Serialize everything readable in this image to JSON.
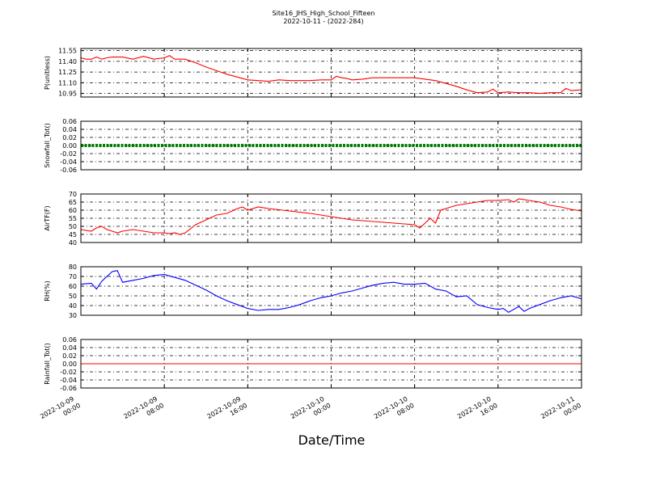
{
  "title": "Site16_JHS_High_School_Fifteen",
  "subtitle": "2022-10-11 - (2022-284)",
  "xlabel": "Date/Time",
  "x_ticks": [
    {
      "t": 0,
      "line1": "2022-10-09",
      "line2": "00:00"
    },
    {
      "t": 8,
      "line1": "2022-10-09",
      "line2": "08:00"
    },
    {
      "t": 16,
      "line1": "2022-10-09",
      "line2": "16:00"
    },
    {
      "t": 24,
      "line1": "2022-10-10",
      "line2": "00:00"
    },
    {
      "t": 32,
      "line1": "2022-10-10",
      "line2": "08:00"
    },
    {
      "t": 40,
      "line1": "2022-10-10",
      "line2": "16:00"
    },
    {
      "t": 48,
      "line1": "2022-10-11",
      "line2": "00:00"
    }
  ],
  "chart_data": [
    {
      "type": "line",
      "ylabel": "P(unitless)",
      "ylim": [
        10.9,
        11.58
      ],
      "yticks": [
        "11.55",
        "11.40",
        "11.25",
        "11.10",
        "10.95"
      ],
      "ytick_values": [
        11.55,
        11.4,
        11.25,
        11.1,
        10.95
      ],
      "color": "#ff0000",
      "x": [
        0,
        0.5,
        1,
        1.5,
        2,
        2.5,
        3,
        3.5,
        4,
        5,
        6,
        7,
        8,
        8.5,
        9,
        10,
        11,
        12,
        13,
        14,
        15,
        16,
        17,
        18,
        19,
        20,
        21,
        22,
        23,
        24,
        24.5,
        25,
        25.5,
        26,
        27,
        28,
        29,
        30,
        31,
        32,
        33,
        34,
        35,
        36,
        37,
        38,
        39,
        39.5,
        40,
        41,
        42,
        43,
        44,
        45,
        46,
        46.5,
        47,
        48
      ],
      "y": [
        11.45,
        11.43,
        11.43,
        11.46,
        11.43,
        11.45,
        11.46,
        11.46,
        11.46,
        11.43,
        11.47,
        11.43,
        11.45,
        11.48,
        11.43,
        11.43,
        11.38,
        11.32,
        11.27,
        11.22,
        11.18,
        11.14,
        11.13,
        11.12,
        11.14,
        11.13,
        11.13,
        11.13,
        11.14,
        11.14,
        11.19,
        11.17,
        11.16,
        11.14,
        11.15,
        11.17,
        11.17,
        11.17,
        11.17,
        11.17,
        11.15,
        11.13,
        11.09,
        11.05,
        11.0,
        10.96,
        10.97,
        11.01,
        10.96,
        10.97,
        10.96,
        10.96,
        10.95,
        10.96,
        10.96,
        11.02,
        10.99,
        11.0
      ]
    },
    {
      "type": "line",
      "ylabel": "Snowfall_Tot()",
      "ylim": [
        -0.06,
        0.06
      ],
      "yticks": [
        "0.06",
        "0.04",
        "0.02",
        "0.00",
        "-0.02",
        "-0.04",
        "-0.06"
      ],
      "ytick_values": [
        0.06,
        0.04,
        0.02,
        0.0,
        -0.02,
        -0.04,
        -0.06
      ],
      "color": "#008000",
      "x": [
        0,
        48
      ],
      "y": [
        0,
        0
      ]
    },
    {
      "type": "line",
      "ylabel": "AirTF(F)",
      "ylim": [
        40,
        70
      ],
      "yticks": [
        "70",
        "65",
        "60",
        "55",
        "50",
        "45",
        "40"
      ],
      "ytick_values": [
        70,
        65,
        60,
        55,
        50,
        45,
        40
      ],
      "color": "#ff0000",
      "x": [
        0,
        1,
        1.5,
        2,
        2.5,
        3,
        3.5,
        4,
        5,
        6,
        7,
        8,
        8.5,
        9,
        9.5,
        10,
        11,
        12,
        13,
        14,
        15,
        15.5,
        16,
        17,
        18,
        20,
        22,
        24,
        26,
        28,
        30,
        31,
        32,
        32.5,
        33,
        33.5,
        34,
        34.5,
        35,
        35.5,
        36,
        37,
        38,
        39,
        40,
        41,
        41.5,
        42,
        43,
        44,
        45,
        46,
        47,
        48
      ],
      "y": [
        48,
        47,
        49,
        50,
        48,
        47,
        46,
        47,
        48,
        47,
        46,
        46,
        45.5,
        46,
        45,
        46,
        51,
        54,
        57,
        58,
        61,
        62,
        60,
        62,
        61,
        59.5,
        58,
        56,
        54,
        53,
        52,
        51.5,
        51,
        49,
        52,
        55,
        52,
        60,
        61,
        62,
        63,
        64,
        65,
        66,
        66,
        66.5,
        65,
        67,
        66,
        65,
        63,
        62,
        60.5,
        59.5
      ]
    },
    {
      "type": "line",
      "ylabel": "RH(%)",
      "ylim": [
        30,
        80
      ],
      "yticks": [
        "80",
        "70",
        "60",
        "50",
        "40",
        "30"
      ],
      "ytick_values": [
        80,
        70,
        60,
        50,
        40,
        30
      ],
      "color": "#0000ff",
      "x": [
        0,
        1,
        1.5,
        2,
        3,
        3.5,
        4,
        5,
        6,
        7,
        8,
        9,
        10,
        11,
        12,
        13,
        14,
        15,
        16,
        17,
        18,
        19,
        20,
        21,
        22,
        23,
        24,
        25,
        26,
        27,
        28,
        29,
        30,
        31,
        32,
        33,
        34,
        35,
        36,
        37,
        38,
        39,
        40,
        40.5,
        41,
        42,
        42.5,
        43,
        44,
        45,
        46,
        47,
        48
      ],
      "y": [
        62,
        63,
        57,
        65,
        75,
        76,
        64,
        66,
        68,
        71,
        72,
        69,
        66,
        61,
        56,
        50,
        45,
        41,
        37,
        35,
        36,
        36,
        38,
        41,
        45,
        48,
        50,
        53,
        55,
        58,
        61,
        63,
        64,
        62,
        62,
        63,
        57,
        55,
        49,
        50,
        41,
        38,
        36,
        37,
        33,
        39,
        34,
        37,
        41,
        45,
        48,
        50,
        47
      ]
    },
    {
      "type": "line",
      "ylabel": "Rainfall_Tot()",
      "ylim": [
        -0.06,
        0.06
      ],
      "yticks": [
        "0.06",
        "0.04",
        "0.02",
        "0.00",
        "-0.02",
        "-0.04",
        "-0.06"
      ],
      "ytick_values": [
        0.06,
        0.04,
        0.02,
        0.0,
        -0.02,
        -0.04,
        -0.06
      ],
      "color": "#ff0000",
      "x": [
        0,
        48
      ],
      "y": [
        0,
        0
      ]
    }
  ]
}
